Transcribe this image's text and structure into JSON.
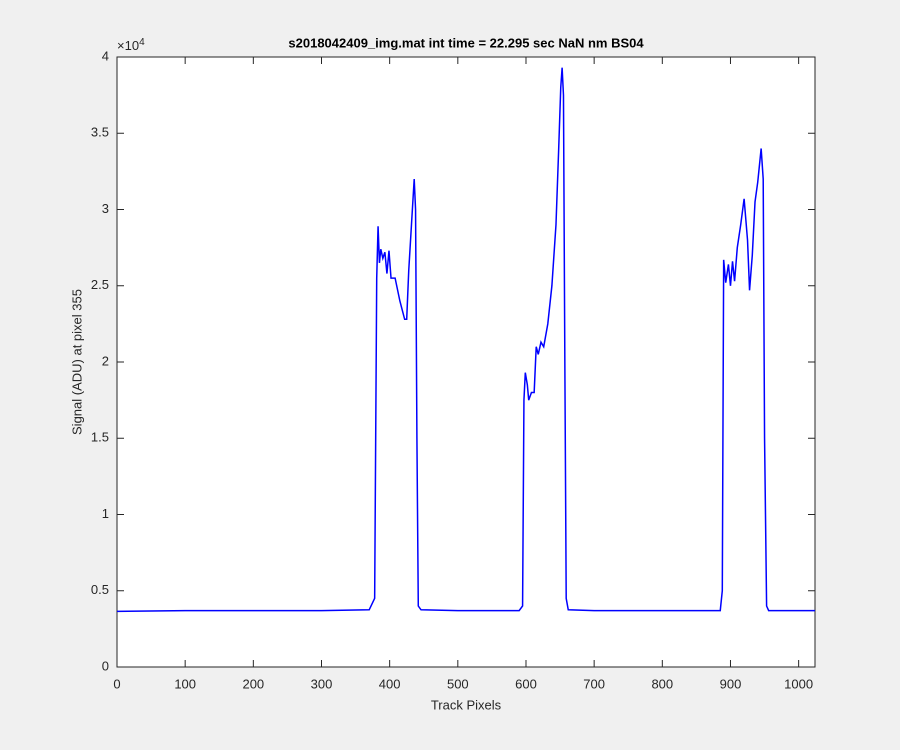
{
  "chart_data": {
    "type": "line",
    "title": "s2018042409_img.mat int time = 22.295 sec  NaN nm BS04",
    "x_label": "Track Pixels",
    "y_label": "Signal (ADU) at pixel 355",
    "y_multiplier": {
      "base": "×10",
      "exponent": "4"
    },
    "xlim": [
      0,
      1024
    ],
    "xticks": [
      0,
      100,
      200,
      300,
      400,
      500,
      600,
      700,
      800,
      900,
      1000
    ],
    "ylim": [
      0,
      40000
    ],
    "yticks": [
      0,
      {
        "value": 5000,
        "label": "0.5"
      },
      {
        "value": 10000,
        "label": "1"
      },
      {
        "value": 15000,
        "label": "1.5"
      },
      {
        "value": 20000,
        "label": "2"
      },
      {
        "value": 25000,
        "label": "2.5"
      },
      {
        "value": 30000,
        "label": "3"
      },
      {
        "value": 35000,
        "label": "3.5"
      },
      {
        "value": 40000,
        "label": "4"
      }
    ],
    "series": [
      {
        "color": "#0000ff",
        "x": [
          0,
          100,
          200,
          300,
          370,
          378,
          381,
          383,
          385,
          387,
          390,
          393,
          396,
          399,
          402,
          408,
          415,
          422,
          425,
          428,
          432,
          436,
          438,
          440,
          442,
          446,
          500,
          590,
          595,
          597,
          599,
          602,
          604,
          608,
          612,
          615,
          618,
          622,
          626,
          632,
          638,
          644,
          648,
          651,
          653,
          655,
          657,
          659,
          662,
          700,
          800,
          885,
          888,
          890,
          893,
          897,
          900,
          903,
          906,
          910,
          915,
          920,
          925,
          928,
          932,
          936,
          940,
          945,
          948,
          950,
          953,
          956,
          1000,
          1024
        ],
        "values": [
          3650,
          3700,
          3700,
          3700,
          3750,
          4500,
          25500,
          28900,
          26500,
          27400,
          26800,
          27200,
          25800,
          27300,
          25500,
          25500,
          24000,
          22800,
          22800,
          26000,
          29000,
          32000,
          30000,
          15000,
          4000,
          3750,
          3700,
          3700,
          4000,
          17500,
          19300,
          18500,
          17500,
          18000,
          18000,
          21000,
          20500,
          21300,
          21000,
          22500,
          25000,
          29000,
          34000,
          38000,
          39300,
          37500,
          20000,
          4500,
          3750,
          3700,
          3700,
          3700,
          5000,
          26700,
          25200,
          26400,
          25000,
          26600,
          25300,
          27500,
          29000,
          30700,
          28000,
          24700,
          27000,
          30500,
          31800,
          34000,
          32000,
          15000,
          4000,
          3700,
          3700,
          3700
        ]
      }
    ]
  }
}
